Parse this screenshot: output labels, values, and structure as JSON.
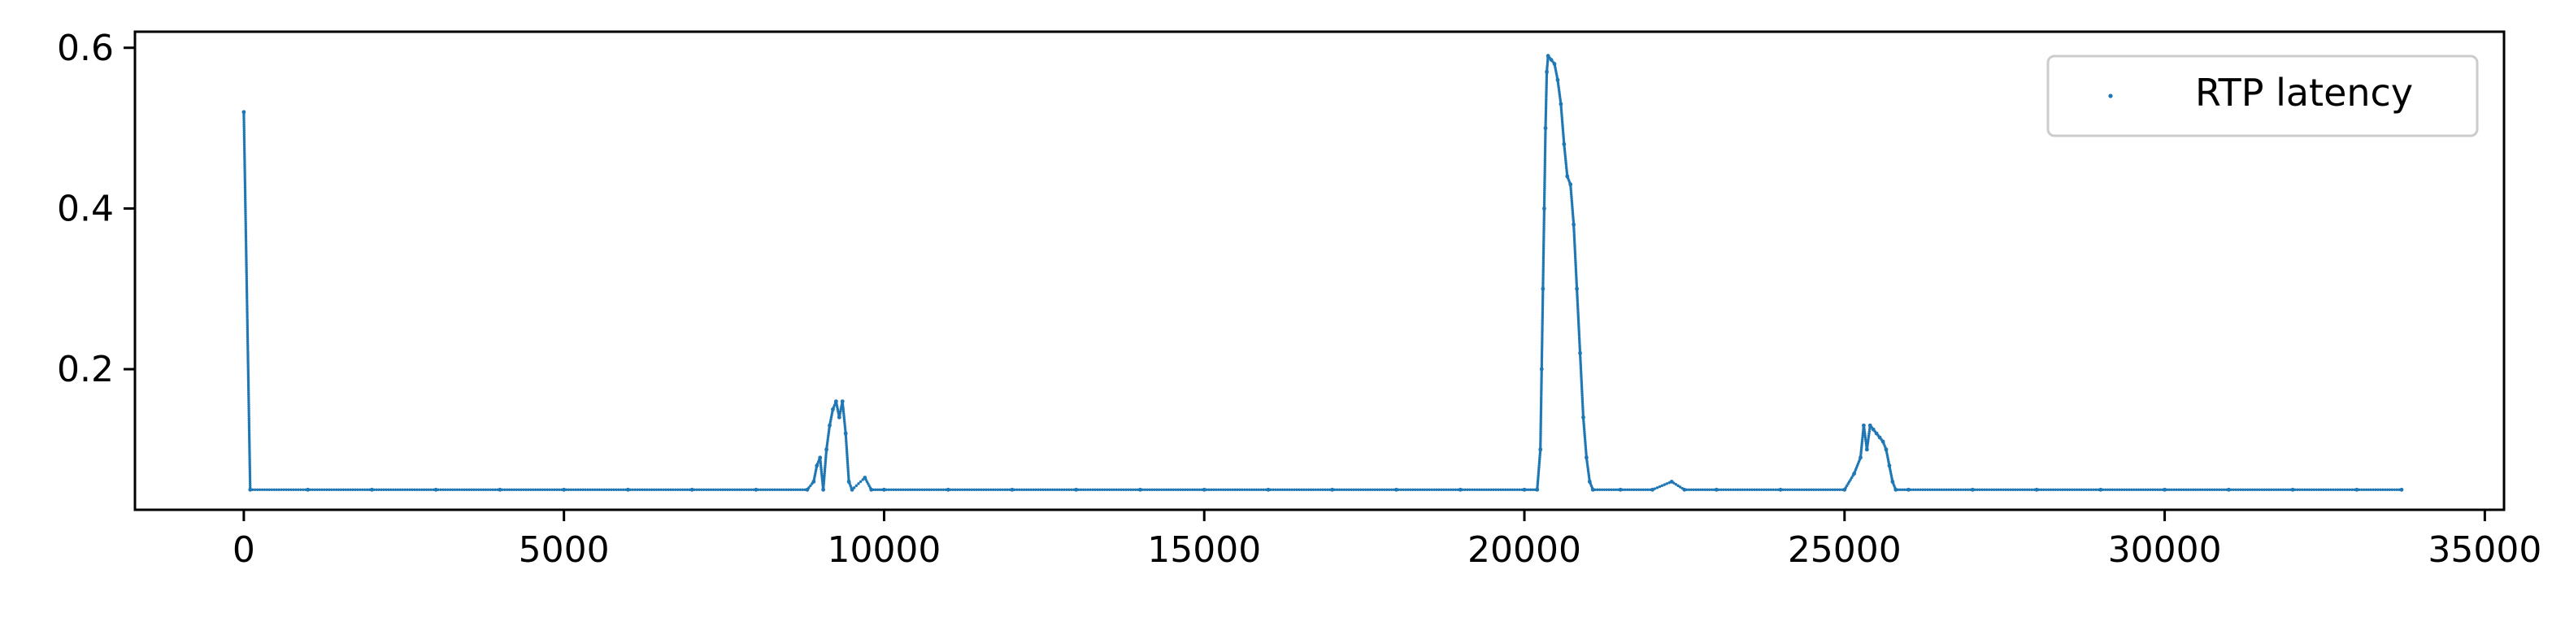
{
  "chart_data": {
    "type": "scatter",
    "title": "",
    "xlabel": "",
    "ylabel": "",
    "xlim": [
      -1700,
      35300
    ],
    "ylim": [
      0.025,
      0.62
    ],
    "x_ticks": [
      0,
      5000,
      10000,
      15000,
      20000,
      25000,
      30000,
      35000
    ],
    "x_tick_labels": [
      "0",
      "5000",
      "10000",
      "15000",
      "20000",
      "25000",
      "30000",
      "35000"
    ],
    "y_ticks": [
      0.2,
      0.4,
      0.6
    ],
    "y_tick_labels": [
      "0.2",
      "0.4",
      "0.6"
    ],
    "grid": false,
    "legend_position": "upper right",
    "baseline": 0.05,
    "series": [
      {
        "name": "RTP latency",
        "color": "#1f77b4",
        "marker": "point",
        "points": [
          [
            0,
            0.52
          ],
          [
            100,
            0.05
          ],
          [
            1000,
            0.05
          ],
          [
            2000,
            0.05
          ],
          [
            3000,
            0.05
          ],
          [
            4000,
            0.05
          ],
          [
            5000,
            0.05
          ],
          [
            6000,
            0.05
          ],
          [
            7000,
            0.05
          ],
          [
            8000,
            0.05
          ],
          [
            8800,
            0.05
          ],
          [
            8900,
            0.06
          ],
          [
            8950,
            0.08
          ],
          [
            9000,
            0.09
          ],
          [
            9050,
            0.05
          ],
          [
            9100,
            0.1
          ],
          [
            9150,
            0.13
          ],
          [
            9200,
            0.15
          ],
          [
            9250,
            0.16
          ],
          [
            9300,
            0.14
          ],
          [
            9350,
            0.16
          ],
          [
            9400,
            0.12
          ],
          [
            9450,
            0.06
          ],
          [
            9500,
            0.05
          ],
          [
            9700,
            0.065
          ],
          [
            9800,
            0.05
          ],
          [
            10000,
            0.05
          ],
          [
            11000,
            0.05
          ],
          [
            12000,
            0.05
          ],
          [
            13000,
            0.05
          ],
          [
            14000,
            0.05
          ],
          [
            15000,
            0.05
          ],
          [
            16000,
            0.05
          ],
          [
            17000,
            0.05
          ],
          [
            18000,
            0.05
          ],
          [
            19000,
            0.05
          ],
          [
            20000,
            0.05
          ],
          [
            20200,
            0.05
          ],
          [
            20250,
            0.1
          ],
          [
            20270,
            0.2
          ],
          [
            20290,
            0.3
          ],
          [
            20310,
            0.4
          ],
          [
            20330,
            0.5
          ],
          [
            20350,
            0.57
          ],
          [
            20370,
            0.59
          ],
          [
            20420,
            0.585
          ],
          [
            20470,
            0.58
          ],
          [
            20520,
            0.56
          ],
          [
            20570,
            0.53
          ],
          [
            20620,
            0.48
          ],
          [
            20670,
            0.44
          ],
          [
            20720,
            0.43
          ],
          [
            20770,
            0.38
          ],
          [
            20820,
            0.3
          ],
          [
            20870,
            0.22
          ],
          [
            20920,
            0.14
          ],
          [
            20970,
            0.09
          ],
          [
            21020,
            0.06
          ],
          [
            21070,
            0.05
          ],
          [
            21500,
            0.05
          ],
          [
            22000,
            0.05
          ],
          [
            22300,
            0.06
          ],
          [
            22500,
            0.05
          ],
          [
            23000,
            0.05
          ],
          [
            24000,
            0.05
          ],
          [
            25000,
            0.05
          ],
          [
            25150,
            0.07
          ],
          [
            25250,
            0.09
          ],
          [
            25300,
            0.13
          ],
          [
            25350,
            0.1
          ],
          [
            25400,
            0.13
          ],
          [
            25450,
            0.125
          ],
          [
            25500,
            0.12
          ],
          [
            25550,
            0.115
          ],
          [
            25600,
            0.11
          ],
          [
            25650,
            0.1
          ],
          [
            25700,
            0.08
          ],
          [
            25750,
            0.06
          ],
          [
            25800,
            0.05
          ],
          [
            26000,
            0.05
          ],
          [
            27000,
            0.05
          ],
          [
            28000,
            0.05
          ],
          [
            29000,
            0.05
          ],
          [
            30000,
            0.05
          ],
          [
            31000,
            0.05
          ],
          [
            32000,
            0.05
          ],
          [
            33000,
            0.05
          ],
          [
            33700,
            0.05
          ]
        ]
      }
    ]
  }
}
